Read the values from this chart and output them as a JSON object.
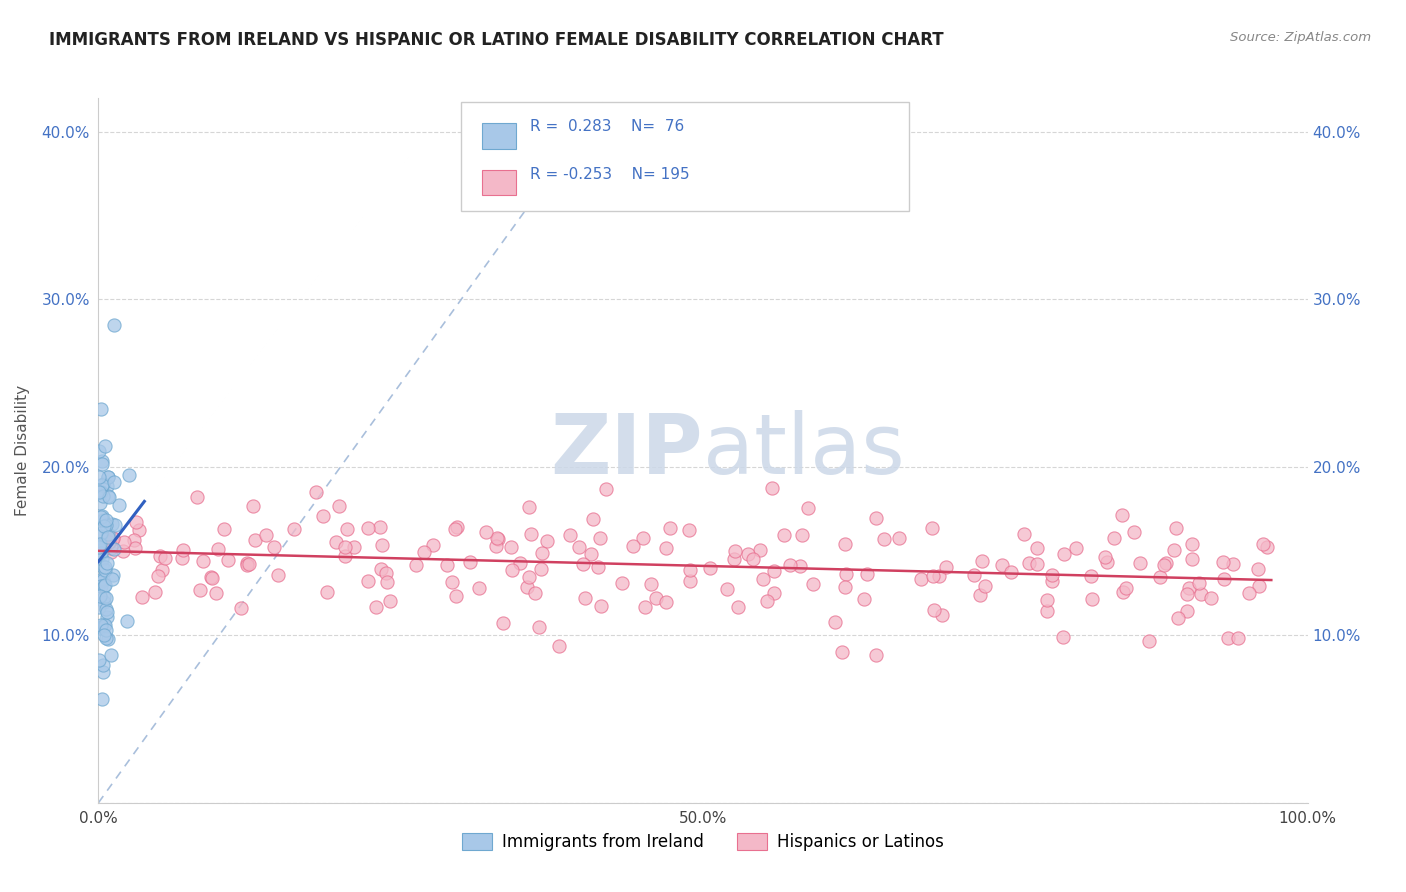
{
  "title": "IMMIGRANTS FROM IRELAND VS HISPANIC OR LATINO FEMALE DISABILITY CORRELATION CHART",
  "source": "Source: ZipAtlas.com",
  "ylabel": "Female Disability",
  "xlim": [
    0.0,
    1.0
  ],
  "ylim": [
    0.0,
    0.42
  ],
  "ytick_vals": [
    0.0,
    0.1,
    0.2,
    0.3,
    0.4
  ],
  "ytick_labels": [
    "",
    "10.0%",
    "20.0%",
    "30.0%",
    "40.0%"
  ],
  "xtick_vals": [
    0.0,
    0.25,
    0.5,
    0.75,
    1.0
  ],
  "xtick_labels": [
    "0.0%",
    "",
    "50.0%",
    "",
    "100.0%"
  ],
  "color_blue_face": "#a8c8e8",
  "color_blue_edge": "#6fa8d0",
  "color_pink_face": "#f4b8c8",
  "color_pink_edge": "#e87090",
  "line_blue": "#3060c0",
  "line_pink": "#d04060",
  "diag_color": "#a0b8d8",
  "watermark_color": "#ccd8e8",
  "background": "#ffffff",
  "grid_color": "#cccccc",
  "title_color": "#222222",
  "axis_color": "#4472c4",
  "label_color": "#555555"
}
